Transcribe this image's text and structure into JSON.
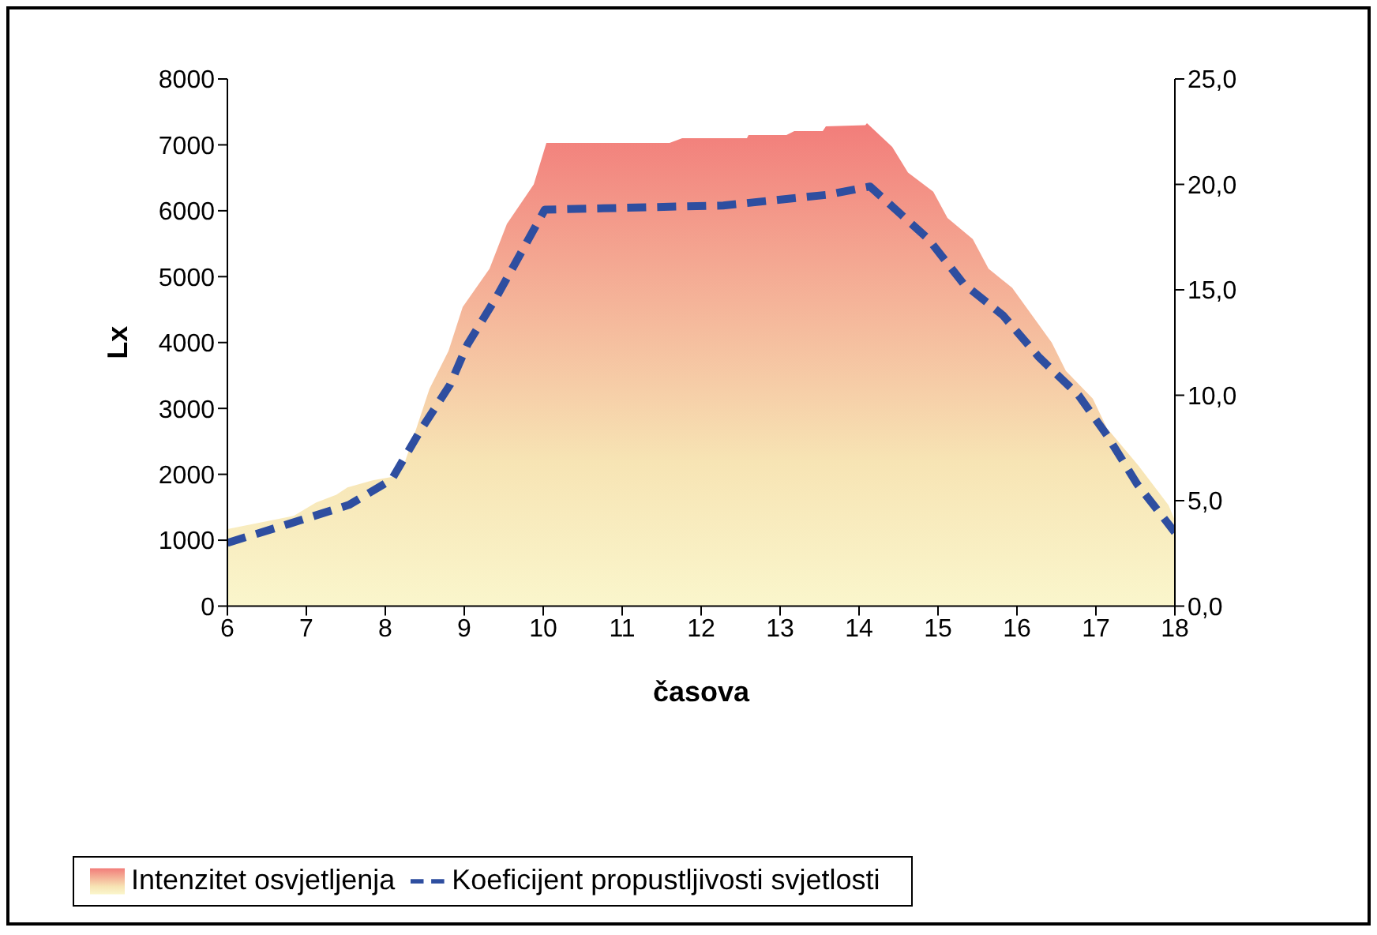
{
  "chart_data": {
    "type": "area",
    "xlabel": "časova",
    "ylabel": "Lx",
    "xlim": [
      6,
      18
    ],
    "xticks": [
      6,
      7,
      8,
      9,
      10,
      11,
      12,
      13,
      14,
      15,
      16,
      17,
      18
    ],
    "ylim": [
      0,
      8000
    ],
    "yticks": [
      0,
      1000,
      2000,
      3000,
      4000,
      5000,
      6000,
      7000,
      8000
    ],
    "y2lim": [
      0,
      25
    ],
    "y2ticks": [
      {
        "value": 0,
        "label": "0,0"
      },
      {
        "value": 5,
        "label": "5,0"
      },
      {
        "value": 10,
        "label": "10,0"
      },
      {
        "value": 15,
        "label": "15,0"
      },
      {
        "value": 20,
        "label": "20,0"
      },
      {
        "value": 25,
        "label": "25,0"
      }
    ],
    "grid": false,
    "legend": "bottom",
    "series": [
      {
        "name": "Intenzitet osvjetljenja",
        "color": "#f27d7a",
        "x": [
          6,
          6.84,
          7.12,
          7.38,
          7.52,
          7.84,
          8.08,
          8.24,
          8.38,
          8.56,
          8.8,
          8.98,
          9.32,
          9.54,
          9.88,
          10.04,
          11.6,
          11.76,
          12.58,
          12.6,
          13.08,
          13.18,
          13.54,
          13.58,
          14.08,
          14.1,
          14.42,
          14.62,
          14.94,
          15.12,
          15.44,
          15.64,
          15.94,
          16.44,
          16.62,
          16.96,
          17.14,
          17.54,
          17.92,
          18
        ],
        "values": [
          1170,
          1370,
          1570,
          1690,
          1800,
          1910,
          1960,
          2160,
          2650,
          3300,
          3870,
          4540,
          5120,
          5800,
          6400,
          7030,
          7030,
          7100,
          7100,
          7150,
          7150,
          7210,
          7210,
          7280,
          7300,
          7330,
          6970,
          6580,
          6290,
          5890,
          5570,
          5120,
          4830,
          4000,
          3570,
          3150,
          2700,
          2130,
          1530,
          1300
        ]
      },
      {
        "name": "Koeficijent propustljivosti svjetlosti",
        "type": "line",
        "axis": "y2",
        "color": "#2e4ea0",
        "line_style": "dashed",
        "marker": "none",
        "x": [
          6,
          6.78,
          7.54,
          8.08,
          8.44,
          8.82,
          9.04,
          9.4,
          9.74,
          10.02,
          12.28,
          13.58,
          14.14,
          14.88,
          15.32,
          15.82,
          16.28,
          16.78,
          17.14,
          17.52,
          18
        ],
        "values": [
          3.0,
          3.9,
          4.8,
          6.0,
          8.3,
          10.5,
          12.4,
          14.6,
          16.9,
          18.8,
          19.0,
          19.5,
          19.9,
          17.4,
          15.3,
          13.8,
          11.8,
          10.0,
          8.1,
          5.8,
          3.5
        ]
      }
    ]
  }
}
